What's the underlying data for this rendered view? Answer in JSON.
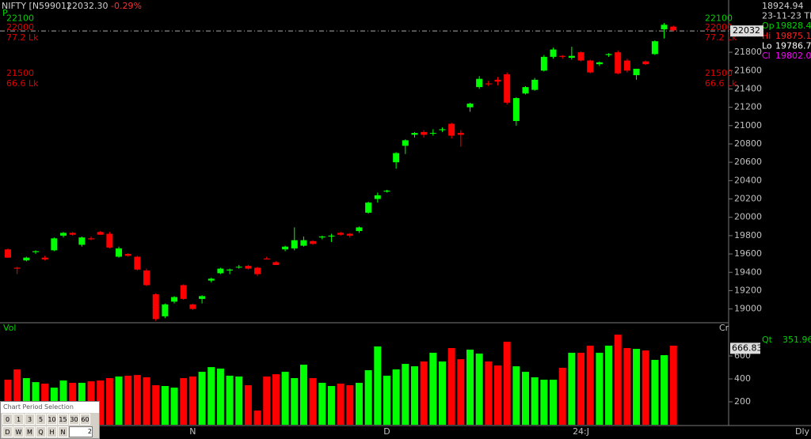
{
  "header": {
    "symbol": "NIFTY [N59901]",
    "price": "22032.30",
    "change": "-0.29%"
  },
  "info_panel": {
    "rows": [
      {
        "value": "18924.94",
        "color": "#d0d0d0"
      },
      {
        "value": "23-11-23 Th",
        "color": "#d0d0d0"
      },
      {
        "label": "Op",
        "value": "19828.45",
        "color": "#00d000"
      },
      {
        "label": "Hi",
        "value": "19875.15",
        "color": "#ff2020"
      },
      {
        "label": "Lo",
        "value": "19786.75",
        "color": "#ffffff"
      },
      {
        "label": "Cl",
        "value": "19802.00",
        "color": "#ff00ff"
      }
    ]
  },
  "period_selector": {
    "title": "Chart Period Selection",
    "row1": [
      "0",
      "1",
      "3",
      "5",
      "10",
      "15",
      "30",
      "60"
    ],
    "row2": [
      "D",
      "W",
      "M",
      "Q",
      "H",
      "N"
    ],
    "input": "2"
  },
  "chart_data": [
    {
      "type": "candlestick",
      "label": "P",
      "up_color": "#00ff00",
      "down_color": "#ff0000",
      "open": [
        19650,
        19450,
        19530,
        19620,
        19560,
        19640,
        19800,
        19830,
        19700,
        19770,
        19840,
        19820,
        19570,
        19600,
        19570,
        19420,
        19160,
        18920,
        19080,
        19260,
        19050,
        19110,
        19310,
        19390,
        19420,
        19460,
        19470,
        19450,
        19550,
        19510,
        19650,
        19660,
        19690,
        19740,
        19780,
        19790,
        19830,
        19820,
        19850,
        20050,
        20200,
        20280,
        20600,
        20780,
        20900,
        20930,
        20920,
        20950,
        21020,
        20920,
        21200,
        21420,
        21460,
        21500,
        21560,
        21050,
        21350,
        21390,
        21600,
        21750,
        21760,
        21740,
        21800,
        21710,
        21670,
        21770,
        21800,
        21710,
        21550,
        21700,
        21780,
        22050,
        22080
      ],
      "high": [
        19660,
        19460,
        19570,
        19640,
        19580,
        19780,
        19840,
        19840,
        19790,
        19790,
        19850,
        19840,
        19680,
        19610,
        19580,
        19440,
        19170,
        19060,
        19140,
        19270,
        19060,
        19150,
        19340,
        19450,
        19440,
        19480,
        19480,
        19460,
        19570,
        19520,
        19690,
        19890,
        19790,
        19750,
        19800,
        19820,
        19840,
        19830,
        19900,
        20170,
        20270,
        20300,
        20710,
        20850,
        20930,
        20950,
        20960,
        20980,
        21030,
        20950,
        21250,
        21540,
        21490,
        21530,
        21580,
        21310,
        21430,
        21520,
        21770,
        21850,
        21770,
        21860,
        21810,
        21720,
        21700,
        21790,
        21820,
        21730,
        21620,
        21710,
        21930,
        22120,
        22090
      ],
      "low": [
        19560,
        19380,
        19520,
        19600,
        19530,
        19630,
        19780,
        19800,
        19680,
        19750,
        19810,
        19660,
        19560,
        19570,
        19420,
        19250,
        18870,
        18900,
        19060,
        19100,
        18990,
        19060,
        19290,
        19380,
        19380,
        19440,
        19430,
        19360,
        19540,
        19480,
        19630,
        19640,
        19680,
        19700,
        19760,
        19730,
        19800,
        19780,
        19830,
        20040,
        20160,
        20270,
        20530,
        20690,
        20870,
        20870,
        20890,
        20930,
        20860,
        20770,
        21150,
        21400,
        21430,
        21440,
        21230,
        21000,
        21340,
        21380,
        21590,
        21730,
        21730,
        21720,
        21700,
        21570,
        21650,
        21750,
        21560,
        21580,
        21500,
        21660,
        21770,
        21950,
        22030
      ],
      "close": [
        19560,
        19440,
        19560,
        19630,
        19540,
        19770,
        19830,
        19810,
        19780,
        19760,
        19810,
        19670,
        19660,
        19580,
        19430,
        19260,
        18890,
        19050,
        19130,
        19110,
        19000,
        19140,
        19330,
        19440,
        19430,
        19460,
        19440,
        19380,
        19540,
        19480,
        19680,
        19750,
        19750,
        19710,
        19790,
        19800,
        19810,
        19800,
        19890,
        20160,
        20240,
        20290,
        20700,
        20840,
        20920,
        20900,
        20920,
        20960,
        20890,
        20900,
        21240,
        21510,
        21450,
        21480,
        21250,
        21300,
        21420,
        21500,
        21750,
        21830,
        21750,
        21760,
        21710,
        21580,
        21690,
        21780,
        21570,
        21600,
        21620,
        21670,
        21920,
        22100,
        22040
      ],
      "ylim": [
        18850,
        22370
      ],
      "yticks": [
        21800,
        21600,
        21400,
        21200,
        21000,
        20800,
        20600,
        20400,
        20200,
        20000,
        19800,
        19600,
        19400,
        19200,
        19000
      ],
      "current_price": 22032,
      "levels": [
        {
          "value": 22100,
          "color": "#00d000"
        },
        {
          "value": 22000,
          "note": "77.2 Lk",
          "color": "#e00000"
        },
        {
          "value": 21500,
          "note": "66.6 Lk",
          "color": "#e00000"
        }
      ]
    },
    {
      "type": "bar",
      "label": "Vol",
      "right_label": "Cr",
      "frequency": "Dly",
      "qty_label": "Qt",
      "qty_value": 351.96,
      "current_value": 666.83,
      "categories": [
        null,
        null,
        null,
        null,
        null,
        null,
        null,
        null,
        null,
        null,
        null,
        null,
        null,
        null,
        null,
        null,
        null,
        null,
        null,
        null,
        "N",
        null,
        null,
        null,
        null,
        null,
        null,
        null,
        null,
        null,
        null,
        null,
        null,
        null,
        null,
        null,
        null,
        null,
        null,
        null,
        null,
        "D",
        null,
        null,
        null,
        null,
        null,
        null,
        null,
        null,
        null,
        null,
        null,
        null,
        null,
        null,
        null,
        null,
        null,
        null,
        null,
        null,
        "24:J",
        null,
        null,
        null,
        null,
        null,
        null,
        null,
        null,
        null,
        null
      ],
      "values": [
        393,
        483,
        407,
        372,
        359,
        324,
        386,
        366,
        366,
        379,
        386,
        407,
        421,
        428,
        434,
        414,
        345,
        338,
        324,
        407,
        421,
        462,
        503,
        490,
        428,
        421,
        345,
        124,
        421,
        441,
        462,
        407,
        524,
        407,
        366,
        338,
        359,
        345,
        366,
        476,
        683,
        428,
        483,
        531,
        510,
        552,
        628,
        552,
        669,
        572,
        655,
        621,
        552,
        517,
        724,
        510,
        462,
        414,
        393,
        393,
        497,
        628,
        628,
        690,
        628,
        690,
        786,
        669,
        662,
        648,
        566,
        607,
        690
      ],
      "ylim": [
        0,
        890
      ],
      "yticks": [
        600,
        400,
        200
      ]
    }
  ]
}
